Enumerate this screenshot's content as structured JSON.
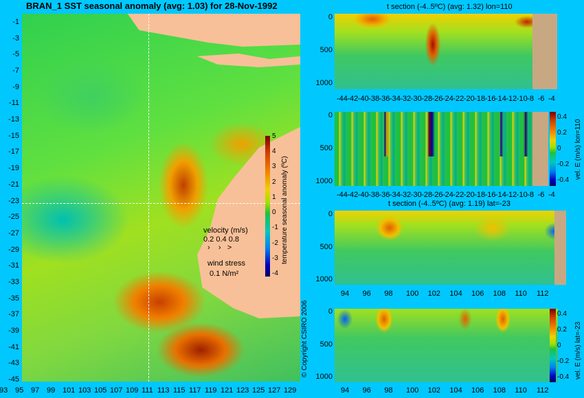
{
  "chart_data": [
    {
      "type": "heatmap",
      "title": "BRAN_1 SST seasonal anomaly (avg: 1.03) for 28-Nov-1992",
      "x_ticks": [
        "93",
        "95",
        "97",
        "99",
        "101",
        "103",
        "105",
        "107",
        "109",
        "111",
        "113",
        "115",
        "117",
        "119",
        "121",
        "123",
        "125",
        "127",
        "129"
      ],
      "y_ticks": [
        "-1",
        "-3",
        "-5",
        "-7",
        "-9",
        "-11",
        "-13",
        "-15",
        "-17",
        "-19",
        "-21",
        "-23",
        "-25",
        "-27",
        "-29",
        "-31",
        "-33",
        "-35",
        "-37",
        "-39",
        "-41",
        "-43",
        "-45"
      ],
      "colorbar": {
        "label": "temperature seasonal anomaly (ºC)",
        "ticks": [
          "5",
          "4",
          "3",
          "2",
          "1",
          "0",
          "-1",
          "-2",
          "-3",
          "-4"
        ],
        "range": [
          -4,
          5
        ]
      },
      "legend": {
        "velocity_label": "velocity (m/s)",
        "velocity_values": "0.2 0.4 0.8",
        "wind_label": "wind stress",
        "wind_value": "0.1 N/m²"
      },
      "copyright": "© Copyright CSIRO 2006"
    },
    {
      "type": "heatmap",
      "title": "t section (-4..5ºC) (avg: 1.32) lon=110",
      "x_ticks": [
        "-44",
        "-42",
        "-40",
        "-38",
        "-36",
        "-34",
        "-32",
        "-30",
        "-28",
        "-26",
        "-24",
        "-22",
        "-20",
        "-18",
        "-16",
        "-14",
        "-12",
        "-10",
        "-8",
        "-6",
        "-4"
      ],
      "y_ticks": [
        "0",
        "500",
        "1000"
      ]
    },
    {
      "type": "heatmap",
      "x_ticks": [
        "-44",
        "-42",
        "-40",
        "-38",
        "-36",
        "-34",
        "-32",
        "-30",
        "-28",
        "-26",
        "-24",
        "-22",
        "-20",
        "-18",
        "-16",
        "-14",
        "-12",
        "-10",
        "-8",
        "-6",
        "-4"
      ],
      "y_ticks": [
        "0",
        "500",
        "1000"
      ],
      "colorbar": {
        "label": "vel. E (m/s) lon=110",
        "ticks": [
          "0.4",
          "0.2",
          "0",
          "-0.2",
          "-0.4"
        ]
      }
    },
    {
      "type": "heatmap",
      "title": "t section (-4..5ºC) (avg: 1.19) lat=-23",
      "x_ticks": [
        "94",
        "96",
        "98",
        "100",
        "102",
        "104",
        "106",
        "108",
        "110",
        "112"
      ],
      "y_ticks": [
        "0",
        "500",
        "1000"
      ]
    },
    {
      "type": "heatmap",
      "x_ticks": [
        "94",
        "96",
        "98",
        "100",
        "102",
        "104",
        "106",
        "108",
        "110",
        "112"
      ],
      "y_ticks": [
        "0",
        "500",
        "1000"
      ],
      "colorbar": {
        "label": "vel. E (m/s) lat=-23",
        "ticks": [
          "0.4",
          "0.2",
          "0",
          "-0.2",
          "-0.4"
        ]
      }
    }
  ]
}
